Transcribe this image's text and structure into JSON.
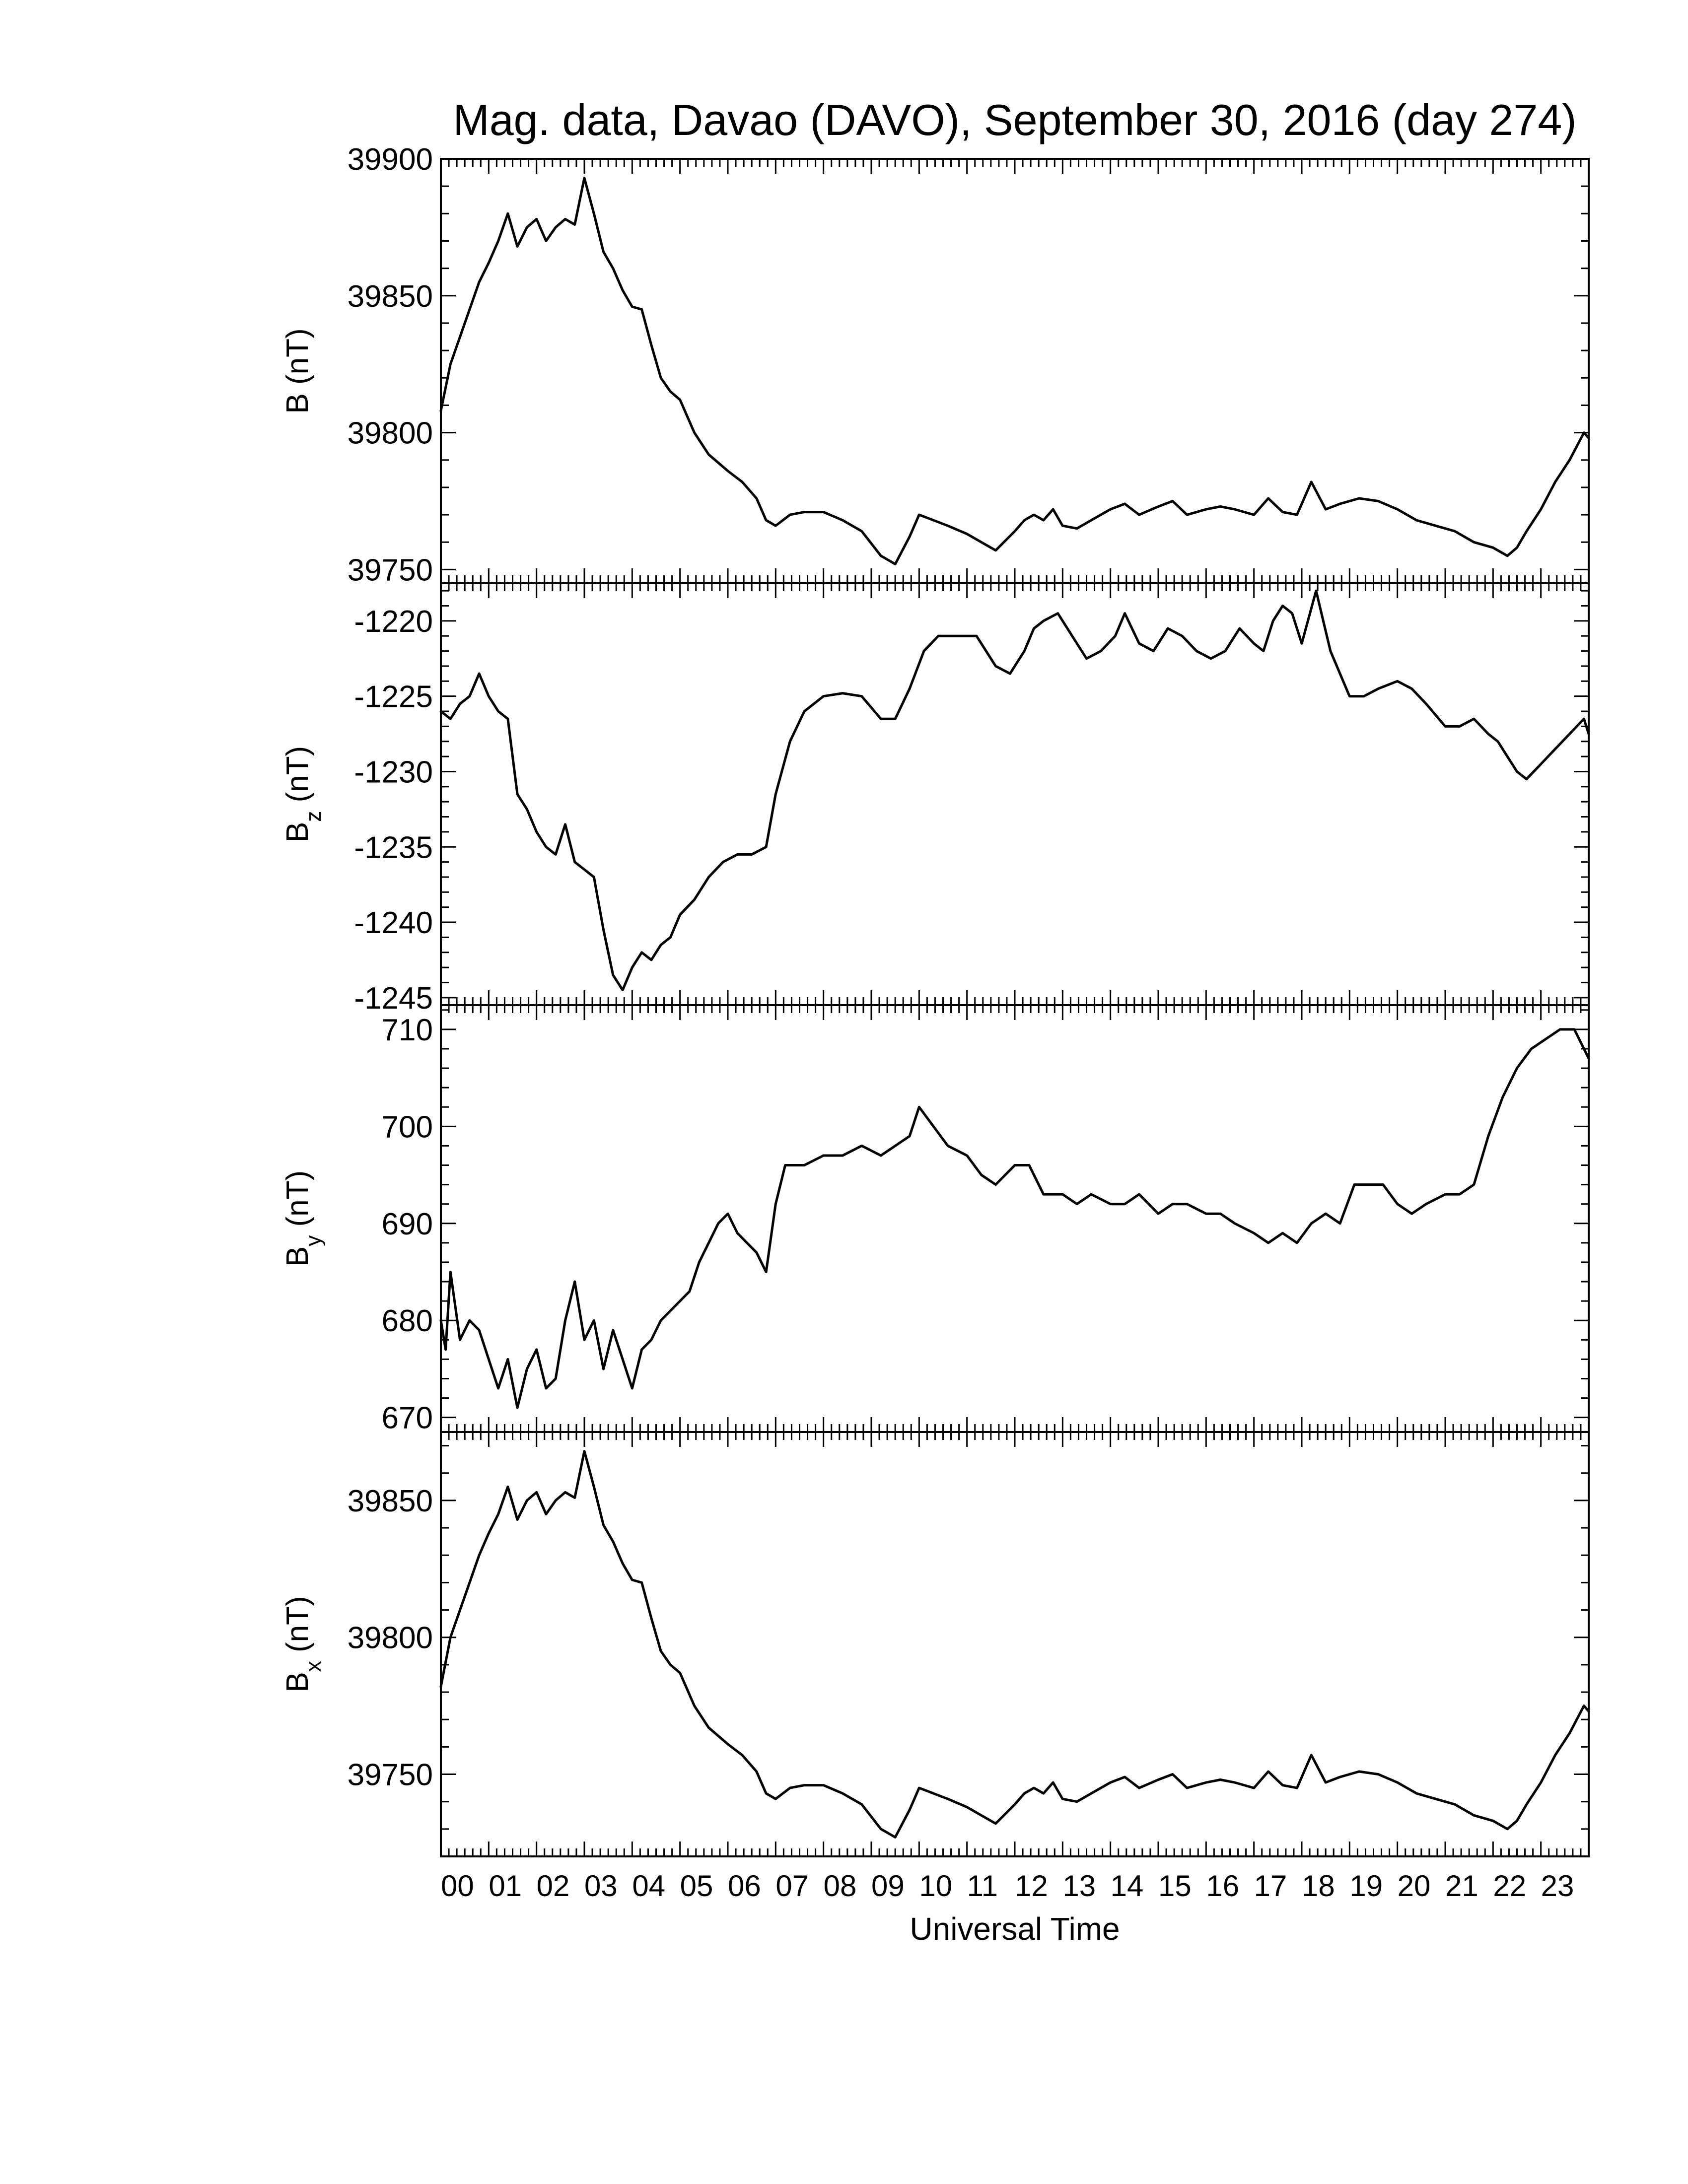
{
  "chart_data": {
    "type": "line",
    "title": "Mag. data, Davao (DAVO), September 30, 2016 (day 274)",
    "xlabel": "Universal Time",
    "x_tick_labels": [
      "00",
      "01",
      "02",
      "03",
      "04",
      "05",
      "06",
      "07",
      "08",
      "09",
      "10",
      "11",
      "12",
      "13",
      "14",
      "15",
      "16",
      "17",
      "18",
      "19",
      "20",
      "21",
      "22",
      "23"
    ],
    "xlim": [
      0,
      24
    ],
    "x_unit": "hours UT",
    "grid": false,
    "legend": "none",
    "line_color": "#000000",
    "panels": [
      {
        "id": "B",
        "ylabel_main": "B",
        "ylabel_sub": "",
        "ylabel_unit": "(nT)",
        "ylim": [
          39745,
          39900
        ],
        "yticks": [
          39750,
          39800,
          39850,
          39900
        ],
        "ytick_labels": [
          "39750",
          "39800",
          "39850",
          "39900"
        ],
        "x": [
          0,
          0.2,
          0.5,
          0.8,
          1.0,
          1.2,
          1.4,
          1.6,
          1.8,
          2.0,
          2.2,
          2.4,
          2.6,
          2.8,
          3.0,
          3.2,
          3.4,
          3.6,
          3.8,
          4.0,
          4.2,
          4.4,
          4.6,
          4.8,
          5.0,
          5.3,
          5.6,
          6.0,
          6.3,
          6.6,
          6.8,
          7.0,
          7.3,
          7.6,
          8.0,
          8.4,
          8.8,
          9.2,
          9.5,
          9.8,
          10.0,
          10.3,
          10.6,
          11.0,
          11.3,
          11.6,
          12.0,
          12.2,
          12.4,
          12.6,
          12.8,
          13.0,
          13.3,
          13.6,
          14.0,
          14.3,
          14.6,
          15.0,
          15.3,
          15.6,
          16.0,
          16.3,
          16.6,
          17.0,
          17.3,
          17.6,
          17.9,
          18.2,
          18.5,
          18.8,
          19.2,
          19.6,
          20.0,
          20.4,
          20.8,
          21.2,
          21.6,
          22.0,
          22.3,
          22.5,
          22.7,
          23.0,
          23.3,
          23.6,
          23.9,
          24.0
        ],
        "y": [
          39808,
          39825,
          39840,
          39855,
          39862,
          39870,
          39880,
          39868,
          39875,
          39878,
          39870,
          39875,
          39878,
          39876,
          39893,
          39880,
          39866,
          39860,
          39852,
          39846,
          39845,
          39832,
          39820,
          39815,
          39812,
          39800,
          39792,
          39786,
          39782,
          39776,
          39768,
          39766,
          39770,
          39771,
          39771,
          39768,
          39764,
          39755,
          39752,
          39762,
          39770,
          39768,
          39766,
          39763,
          39760,
          39757,
          39764,
          39768,
          39770,
          39768,
          39772,
          39766,
          39765,
          39768,
          39772,
          39774,
          39770,
          39773,
          39775,
          39770,
          39772,
          39773,
          39772,
          39770,
          39776,
          39771,
          39770,
          39782,
          39772,
          39774,
          39776,
          39775,
          39772,
          39768,
          39766,
          39764,
          39760,
          39758,
          39755,
          39758,
          39764,
          39772,
          39782,
          39790,
          39800,
          39798
        ]
      },
      {
        "id": "Bz",
        "ylabel_main": "B",
        "ylabel_sub": "z",
        "ylabel_unit": "(nT)",
        "ylim": [
          -1245.5,
          -1217.5
        ],
        "yticks": [
          -1245,
          -1240,
          -1235,
          -1230,
          -1225,
          -1220
        ],
        "ytick_labels": [
          "-1245",
          "-1240",
          "-1235",
          "-1230",
          "-1225",
          "-1220"
        ],
        "x": [
          0,
          0.2,
          0.4,
          0.6,
          0.8,
          1.0,
          1.2,
          1.4,
          1.6,
          1.8,
          2.0,
          2.2,
          2.4,
          2.6,
          2.8,
          3.0,
          3.2,
          3.4,
          3.6,
          3.8,
          4.0,
          4.2,
          4.4,
          4.6,
          4.8,
          5.0,
          5.3,
          5.6,
          5.9,
          6.2,
          6.5,
          6.8,
          7.0,
          7.3,
          7.6,
          8.0,
          8.4,
          8.8,
          9.2,
          9.5,
          9.8,
          10.1,
          10.4,
          10.8,
          11.2,
          11.6,
          11.9,
          12.2,
          12.4,
          12.6,
          12.9,
          13.2,
          13.5,
          13.8,
          14.1,
          14.3,
          14.6,
          14.9,
          15.2,
          15.5,
          15.8,
          16.1,
          16.4,
          16.7,
          17.0,
          17.2,
          17.4,
          17.6,
          17.8,
          18.0,
          18.3,
          18.6,
          19.0,
          19.3,
          19.6,
          20.0,
          20.3,
          20.6,
          21.0,
          21.3,
          21.6,
          21.9,
          22.1,
          22.3,
          22.5,
          22.7,
          23.0,
          23.3,
          23.6,
          23.9,
          24.0
        ],
        "y": [
          -1226.0,
          -1226.5,
          -1225.5,
          -1225.0,
          -1223.5,
          -1225.0,
          -1226.0,
          -1226.5,
          -1231.5,
          -1232.5,
          -1234.0,
          -1235.0,
          -1235.5,
          -1233.5,
          -1236.0,
          -1236.5,
          -1237.0,
          -1240.5,
          -1243.5,
          -1244.5,
          -1243.0,
          -1242.0,
          -1242.5,
          -1241.5,
          -1241.0,
          -1239.5,
          -1238.5,
          -1237.0,
          -1236.0,
          -1235.5,
          -1235.5,
          -1235.0,
          -1231.5,
          -1228.0,
          -1226.0,
          -1225.0,
          -1224.8,
          -1225.0,
          -1226.5,
          -1226.5,
          -1224.5,
          -1222.0,
          -1221.0,
          -1221.0,
          -1221.0,
          -1223.0,
          -1223.5,
          -1222.0,
          -1220.5,
          -1220.0,
          -1219.5,
          -1221.0,
          -1222.5,
          -1222.0,
          -1221.0,
          -1219.5,
          -1221.5,
          -1222.0,
          -1220.5,
          -1221.0,
          -1222.0,
          -1222.5,
          -1222.0,
          -1220.5,
          -1221.5,
          -1222.0,
          -1220.0,
          -1219.0,
          -1219.5,
          -1221.5,
          -1218.0,
          -1222.0,
          -1225.0,
          -1225.0,
          -1224.5,
          -1224.0,
          -1224.5,
          -1225.5,
          -1227.0,
          -1227.0,
          -1226.5,
          -1227.5,
          -1228.0,
          -1229.0,
          -1230.0,
          -1230.5,
          -1229.5,
          -1228.5,
          -1227.5,
          -1226.5,
          -1227.5
        ]
      },
      {
        "id": "By",
        "ylabel_main": "B",
        "ylabel_sub": "y",
        "ylabel_unit": "(nT)",
        "ylim": [
          668.5,
          712.5
        ],
        "yticks": [
          670,
          680,
          690,
          700,
          710
        ],
        "ytick_labels": [
          "670",
          "680",
          "690",
          "700",
          "710"
        ],
        "x": [
          0,
          0.1,
          0.2,
          0.4,
          0.6,
          0.8,
          1.0,
          1.2,
          1.4,
          1.6,
          1.8,
          2.0,
          2.2,
          2.4,
          2.6,
          2.8,
          3.0,
          3.2,
          3.4,
          3.6,
          3.8,
          4.0,
          4.2,
          4.4,
          4.6,
          4.8,
          5.0,
          5.2,
          5.4,
          5.6,
          5.8,
          6.0,
          6.2,
          6.4,
          6.6,
          6.8,
          7.0,
          7.2,
          7.4,
          7.6,
          8.0,
          8.4,
          8.8,
          9.2,
          9.5,
          9.8,
          10.0,
          10.3,
          10.6,
          11.0,
          11.3,
          11.6,
          12.0,
          12.3,
          12.6,
          13.0,
          13.3,
          13.6,
          14.0,
          14.3,
          14.6,
          15.0,
          15.3,
          15.6,
          16.0,
          16.3,
          16.6,
          17.0,
          17.3,
          17.6,
          17.9,
          18.2,
          18.5,
          18.8,
          19.1,
          19.4,
          19.7,
          20.0,
          20.3,
          20.6,
          21.0,
          21.3,
          21.6,
          21.9,
          22.2,
          22.5,
          22.8,
          23.1,
          23.4,
          23.7,
          24.0
        ],
        "y": [
          680,
          677,
          685,
          678,
          680,
          679,
          676,
          673,
          676,
          671,
          675,
          677,
          673,
          674,
          680,
          684,
          678,
          680,
          675,
          679,
          676,
          673,
          677,
          678,
          680,
          681,
          682,
          683,
          686,
          688,
          690,
          691,
          689,
          688,
          687,
          685,
          692,
          696,
          696,
          696,
          697,
          697,
          698,
          697,
          698,
          699,
          702,
          700,
          698,
          697,
          695,
          694,
          696,
          696,
          693,
          693,
          692,
          693,
          692,
          692,
          693,
          691,
          692,
          692,
          691,
          691,
          690,
          689,
          688,
          689,
          688,
          690,
          691,
          690,
          694,
          694,
          694,
          692,
          691,
          692,
          693,
          693,
          694,
          699,
          703,
          706,
          708,
          709,
          710,
          710,
          707
        ]
      },
      {
        "id": "Bx",
        "ylabel_main": "B",
        "ylabel_sub": "x",
        "ylabel_unit": "(nT)",
        "ylim": [
          39720,
          39875
        ],
        "yticks": [
          39750,
          39800,
          39850
        ],
        "ytick_labels": [
          "39750",
          "39800",
          "39850"
        ],
        "x": [
          0,
          0.2,
          0.5,
          0.8,
          1.0,
          1.2,
          1.4,
          1.6,
          1.8,
          2.0,
          2.2,
          2.4,
          2.6,
          2.8,
          3.0,
          3.2,
          3.4,
          3.6,
          3.8,
          4.0,
          4.2,
          4.4,
          4.6,
          4.8,
          5.0,
          5.3,
          5.6,
          6.0,
          6.3,
          6.6,
          6.8,
          7.0,
          7.3,
          7.6,
          8.0,
          8.4,
          8.8,
          9.2,
          9.5,
          9.8,
          10.0,
          10.3,
          10.6,
          11.0,
          11.3,
          11.6,
          12.0,
          12.2,
          12.4,
          12.6,
          12.8,
          13.0,
          13.3,
          13.6,
          14.0,
          14.3,
          14.6,
          15.0,
          15.3,
          15.6,
          16.0,
          16.3,
          16.6,
          17.0,
          17.3,
          17.6,
          17.9,
          18.2,
          18.5,
          18.8,
          19.2,
          19.6,
          20.0,
          20.4,
          20.8,
          21.2,
          21.6,
          22.0,
          22.3,
          22.5,
          22.7,
          23.0,
          23.3,
          23.6,
          23.9,
          24.0
        ],
        "y": [
          39782,
          39800,
          39815,
          39830,
          39838,
          39845,
          39855,
          39843,
          39850,
          39853,
          39845,
          39850,
          39853,
          39851,
          39868,
          39855,
          39841,
          39835,
          39827,
          39821,
          39820,
          39807,
          39795,
          39790,
          39787,
          39775,
          39767,
          39761,
          39757,
          39751,
          39743,
          39741,
          39745,
          39746,
          39746,
          39743,
          39739,
          39730,
          39727,
          39737,
          39745,
          39743,
          39741,
          39738,
          39735,
          39732,
          39739,
          39743,
          39745,
          39743,
          39747,
          39741,
          39740,
          39743,
          39747,
          39749,
          39745,
          39748,
          39750,
          39745,
          39747,
          39748,
          39747,
          39745,
          39751,
          39746,
          39745,
          39757,
          39747,
          39749,
          39751,
          39750,
          39747,
          39743,
          39741,
          39739,
          39735,
          39733,
          39730,
          39733,
          39739,
          39747,
          39757,
          39765,
          39775,
          39773
        ]
      }
    ]
  }
}
